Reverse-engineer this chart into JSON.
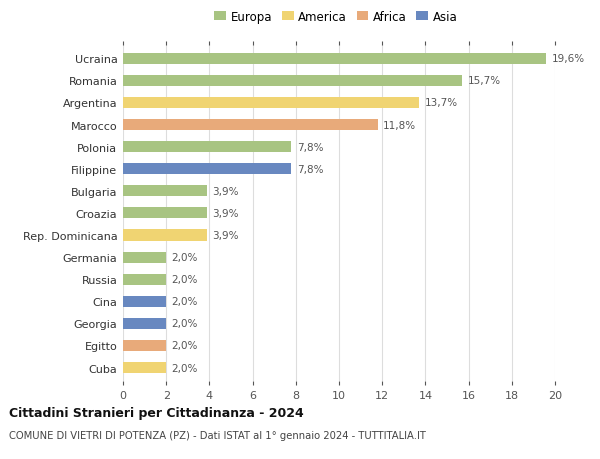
{
  "categories": [
    "Ucraina",
    "Romania",
    "Argentina",
    "Marocco",
    "Polonia",
    "Filippine",
    "Bulgaria",
    "Croazia",
    "Rep. Dominicana",
    "Germania",
    "Russia",
    "Cina",
    "Georgia",
    "Egitto",
    "Cuba"
  ],
  "values": [
    19.6,
    15.7,
    13.7,
    11.8,
    7.8,
    7.8,
    3.9,
    3.9,
    3.9,
    2.0,
    2.0,
    2.0,
    2.0,
    2.0,
    2.0
  ],
  "labels": [
    "19,6%",
    "15,7%",
    "13,7%",
    "11,8%",
    "7,8%",
    "7,8%",
    "3,9%",
    "3,9%",
    "3,9%",
    "2,0%",
    "2,0%",
    "2,0%",
    "2,0%",
    "2,0%",
    "2,0%"
  ],
  "continents": [
    "Europa",
    "Europa",
    "America",
    "Africa",
    "Europa",
    "Asia",
    "Europa",
    "Europa",
    "America",
    "Europa",
    "Europa",
    "Asia",
    "Asia",
    "Africa",
    "America"
  ],
  "continent_colors": {
    "Europa": "#a8c482",
    "America": "#f0d472",
    "Africa": "#e8aa7a",
    "Asia": "#6888c0"
  },
  "legend_order": [
    "Europa",
    "America",
    "Africa",
    "Asia"
  ],
  "title": "Cittadini Stranieri per Cittadinanza - 2024",
  "subtitle": "COMUNE DI VIETRI DI POTENZA (PZ) - Dati ISTAT al 1° gennaio 2024 - TUTTITALIA.IT",
  "xlim": [
    0,
    20
  ],
  "xticks": [
    0,
    2,
    4,
    6,
    8,
    10,
    12,
    14,
    16,
    18,
    20
  ],
  "background_color": "#ffffff",
  "grid_color": "#dddddd",
  "bar_height": 0.5
}
